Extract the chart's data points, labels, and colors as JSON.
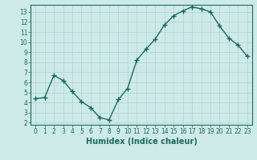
{
  "x": [
    0,
    1,
    2,
    3,
    4,
    5,
    6,
    7,
    8,
    9,
    10,
    11,
    12,
    13,
    14,
    15,
    16,
    17,
    18,
    19,
    20,
    21,
    22,
    23
  ],
  "y": [
    4.4,
    4.5,
    6.7,
    6.2,
    5.1,
    4.1,
    3.5,
    2.5,
    2.3,
    4.3,
    5.4,
    8.2,
    9.3,
    10.3,
    11.7,
    12.6,
    13.1,
    13.5,
    13.3,
    13.0,
    11.6,
    10.4,
    9.7,
    8.6
  ],
  "xlabel": "Humidex (Indice chaleur)",
  "line_color": "#1a6b5a",
  "marker": "+",
  "bg_color": "#ceeae8",
  "grid_color": "#aed4d0",
  "tick_color": "#1a6b5a",
  "spine_color": "#1a6b5a",
  "xlim": [
    -0.5,
    23.5
  ],
  "ylim": [
    1.8,
    13.7
  ],
  "yticks": [
    2,
    3,
    4,
    5,
    6,
    7,
    8,
    9,
    10,
    11,
    12,
    13
  ],
  "xticks": [
    0,
    1,
    2,
    3,
    4,
    5,
    6,
    7,
    8,
    9,
    10,
    11,
    12,
    13,
    14,
    15,
    16,
    17,
    18,
    19,
    20,
    21,
    22,
    23
  ],
  "tick_fontsize": 5.5,
  "xlabel_fontsize": 7
}
